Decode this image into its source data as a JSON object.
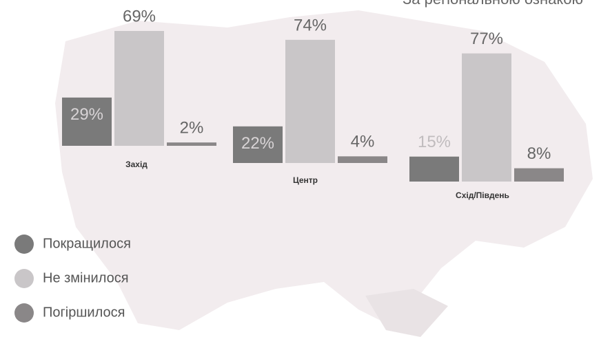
{
  "chart_data": {
    "type": "bar",
    "title": "За регіональною ознакою",
    "categories": [
      "Захід",
      "Центр",
      "Схід/Південь"
    ],
    "series": [
      {
        "name": "Покращилося",
        "color": "#7a7a7a",
        "values": [
          29,
          22,
          15
        ],
        "value_labels": [
          "29%",
          "22%",
          "15%"
        ]
      },
      {
        "name": "Не змінилося",
        "color": "#c9c6c8",
        "values": [
          69,
          74,
          77
        ],
        "value_labels": [
          "69%",
          "74%",
          "77%"
        ]
      },
      {
        "name": "Погіршилося",
        "color": "#8a8788",
        "values": [
          2,
          4,
          8
        ],
        "value_labels": [
          "2%",
          "4%",
          "8%"
        ]
      }
    ]
  }
}
